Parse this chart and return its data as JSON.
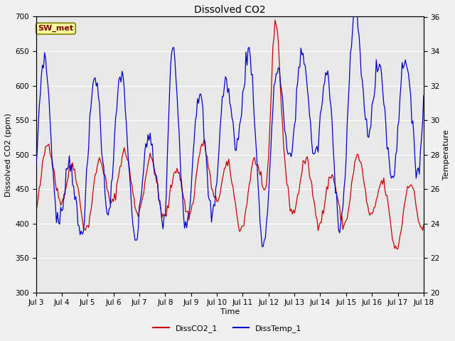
{
  "title": "Dissolved CO2",
  "ylabel_left": "Dissolved CO2 (ppm)",
  "ylabel_right": "Temperature",
  "xlabel": "Time",
  "ylim_left": [
    300,
    700
  ],
  "ylim_right": [
    20,
    36
  ],
  "fig_bg_color": "#f0f0f0",
  "plot_bg_color": "#e8e8e8",
  "co2_color": "#cc0000",
  "temp_color": "#0000cc",
  "legend_co2": "DissCO2_1",
  "legend_temp": "DissTemp_1",
  "station_label": "SW_met",
  "x_tick_labels": [
    "Jul 3",
    "Jul 4",
    "Jul 5",
    "Jul 6",
    "Jul 7",
    "Jul 8",
    "Jul 9",
    "Jul 10",
    "Jul 11",
    "Jul 12",
    "Jul 13",
    "Jul 14",
    "Jul 15",
    "Jul 16",
    "Jul 17",
    "Jul 18"
  ],
  "x_tick_positions": [
    0,
    24,
    48,
    72,
    96,
    120,
    144,
    168,
    192,
    216,
    240,
    264,
    288,
    312,
    336,
    360
  ]
}
